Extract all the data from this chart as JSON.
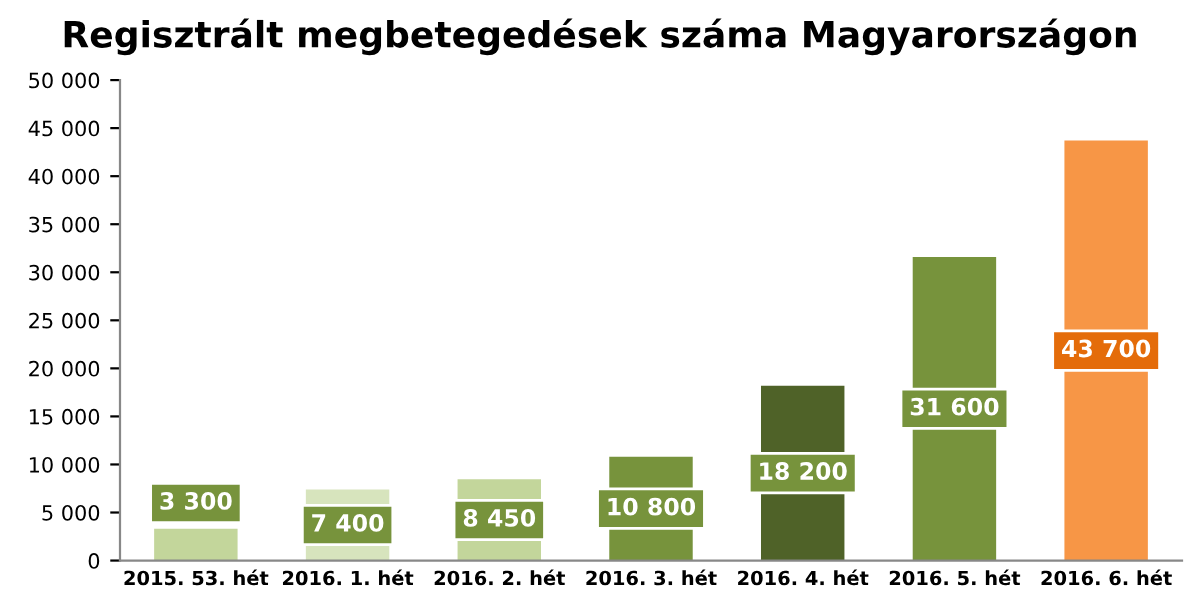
{
  "chart_data": {
    "type": "bar",
    "title": "Regisztrált megbetegedések száma Magyarországon",
    "categories": [
      "2015. 53. hét",
      "2016. 1. hét",
      "2016. 2. hét",
      "2016. 3. hét",
      "2016. 4. hét",
      "2016. 5. hét",
      "2016. 6. hét"
    ],
    "values": [
      3300,
      7400,
      8450,
      10800,
      18200,
      31600,
      43700
    ],
    "colors": [
      "#c3d69b",
      "#d7e4bd",
      "#c3d69b",
      "#77933c",
      "#4f6228",
      "#77933c",
      "#f79646"
    ],
    "value_labels": [
      "3 300",
      "7 400",
      "8 450",
      "10 800",
      "18 200",
      "31 600",
      "43 700"
    ],
    "ylim": [
      0,
      50000
    ],
    "yticks": [
      {
        "value": 0,
        "label": "0"
      },
      {
        "value": 5000,
        "label": "5 000"
      },
      {
        "value": 10000,
        "label": "10 000"
      },
      {
        "value": 15000,
        "label": "15 000"
      },
      {
        "value": 20000,
        "label": "20 000"
      },
      {
        "value": 25000,
        "label": "25 000"
      },
      {
        "value": 30000,
        "label": "30 000"
      },
      {
        "value": 35000,
        "label": "35 000"
      },
      {
        "value": 40000,
        "label": "40 000"
      },
      {
        "value": 45000,
        "label": "45 000"
      },
      {
        "value": 50000,
        "label": "50 000"
      }
    ],
    "grid": false,
    "legend": false
  }
}
